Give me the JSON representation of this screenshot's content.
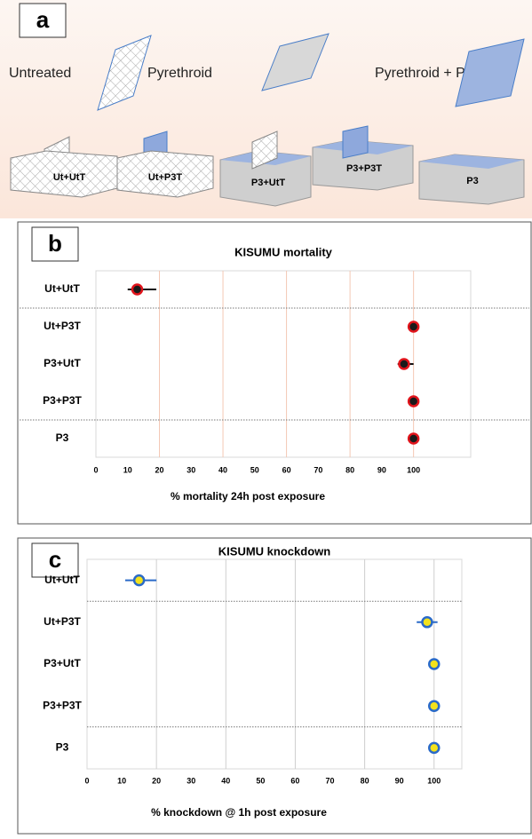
{
  "panel_a": {
    "label": "a",
    "legend": [
      "Untreated",
      "Pyrethroid",
      "Pyrethroid + PBO"
    ],
    "nets": [
      "Ut+UtT",
      "Ut+P3T",
      "P3+UtT",
      "P3+P3T",
      "P3"
    ]
  },
  "chart_data": [
    {
      "type": "dot",
      "label": "b",
      "title": "KISUMU mortality",
      "xlabel": "% mortality 24h post exposure",
      "categories": [
        "Ut+UtT",
        "Ut+P3T",
        "P3+UtT",
        "P3+P3T",
        "P3"
      ],
      "values": [
        13,
        100,
        97,
        100,
        100
      ],
      "ci_low": [
        10,
        null,
        95,
        null,
        null
      ],
      "ci_high": [
        19,
        null,
        100,
        null,
        null
      ],
      "marker_color": "#1a1a1a",
      "edge_color": "#e0141b",
      "error_color": "#111111",
      "grid_color": "#f4c8b4",
      "xlim": [
        0,
        118
      ],
      "xticks": [
        0,
        10,
        20,
        30,
        40,
        50,
        60,
        70,
        80,
        90,
        100
      ]
    },
    {
      "type": "dot",
      "label": "c",
      "title": "KISUMU knockdown",
      "xlabel": "% knockdown @ 1h post exposure",
      "categories": [
        "Ut+UtT",
        "Ut+P3T",
        "P3+UtT",
        "P3+P3T",
        "P3"
      ],
      "values": [
        15,
        98,
        100,
        100,
        100
      ],
      "ci_low": [
        11,
        95,
        null,
        null,
        null
      ],
      "ci_high": [
        20,
        101,
        null,
        null,
        null
      ],
      "marker_color": "#f3e21c",
      "edge_color": "#2a6ac8",
      "error_color": "#2a6ac8",
      "grid_color": "#cfcfcf",
      "xlim": [
        0,
        108
      ],
      "xticks": [
        0,
        10,
        20,
        30,
        40,
        50,
        60,
        70,
        80,
        90,
        100
      ]
    }
  ]
}
